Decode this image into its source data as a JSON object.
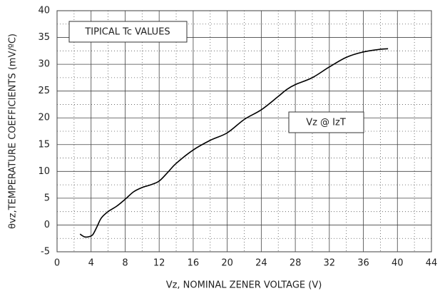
{
  "chart_data": {
    "type": "line",
    "annotations": [
      "TIPICAL Tc VALUES",
      "Vz @ IzT"
    ],
    "x_label": "Vz, NOMINAL ZENER VOLTAGE (V)",
    "y_label": "θvz,TEMPERATURE COEFFICIENTS (mV/ºC)",
    "x": [
      2.7,
      3.2,
      3.7,
      4.2,
      4.7,
      5.2,
      6,
      7,
      8,
      9,
      10,
      11,
      12,
      13,
      14,
      16,
      18,
      20,
      22,
      24,
      26,
      27,
      28,
      30,
      32,
      34,
      36,
      38,
      38.9
    ],
    "values": [
      -1.7,
      -2.2,
      -2.2,
      -1.8,
      -0.3,
      1.3,
      2.5,
      3.5,
      4.8,
      6.2,
      7,
      7.5,
      8.2,
      9.8,
      11.5,
      14,
      15.8,
      17.2,
      19.7,
      21.5,
      24,
      25.3,
      26.2,
      27.5,
      29.5,
      31.3,
      32.3,
      32.8,
      32.9
    ],
    "color": "#000000",
    "xlim": [
      0,
      44
    ],
    "xticks": [
      0,
      4,
      8,
      12,
      16,
      20,
      24,
      28,
      32,
      36,
      40,
      44
    ],
    "ylim": [
      -5,
      40
    ],
    "yticks": [
      -5,
      0,
      5,
      10,
      15,
      20,
      25,
      30,
      35,
      40
    ],
    "grid": true
  }
}
